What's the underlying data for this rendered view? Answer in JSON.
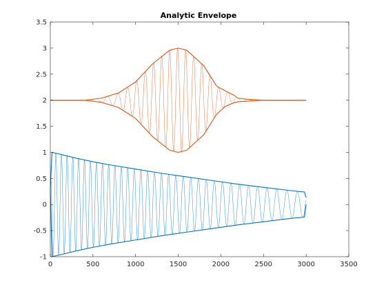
{
  "chart_data": {
    "type": "line",
    "title": "Analytic Envelope",
    "xlabel": "",
    "ylabel": "",
    "xlim": [
      0,
      3500
    ],
    "ylim": [
      -1,
      3.5
    ],
    "x_ticks": [
      "0",
      "500",
      "1000",
      "1500",
      "2000",
      "2500",
      "3000",
      "3500"
    ],
    "y_ticks": [
      "-1",
      "-0.5",
      "0",
      "0.5",
      "1",
      "1.5",
      "2",
      "2.5",
      "3",
      "3.5"
    ],
    "grid": false,
    "legend": "none",
    "series": [
      {
        "color": "#0072BD",
        "style": "oscillating signal between envelopes",
        "upper_envelope": {
          "x": [
            0,
            20,
            100,
            300,
            500,
            700,
            1000,
            1300,
            1600,
            1900,
            2200,
            2500,
            2800,
            2980,
            3000
          ],
          "y": [
            0.3,
            1.0,
            0.97,
            0.89,
            0.82,
            0.76,
            0.68,
            0.6,
            0.53,
            0.46,
            0.39,
            0.33,
            0.27,
            0.24,
            0.13
          ]
        },
        "lower_envelope": {
          "x": [
            0,
            20,
            100,
            300,
            500,
            700,
            1000,
            1300,
            1600,
            1900,
            2200,
            2500,
            2800,
            2980,
            3000
          ],
          "y": [
            0.3,
            -1.0,
            -0.97,
            -0.89,
            -0.82,
            -0.76,
            -0.68,
            -0.6,
            -0.53,
            -0.46,
            -0.39,
            -0.33,
            -0.27,
            -0.24,
            0.0
          ]
        }
      },
      {
        "color": "#D95319",
        "style": "oscillating signal between envelopes",
        "upper_envelope": {
          "x": [
            0,
            400,
            600,
            800,
            1000,
            1200,
            1400,
            1500,
            1600,
            1800,
            1950,
            2050,
            2150,
            2200,
            2300,
            2500,
            2700,
            3000
          ],
          "y": [
            2.0,
            2.0,
            2.04,
            2.14,
            2.35,
            2.7,
            2.96,
            3.0,
            2.96,
            2.66,
            2.27,
            2.18,
            2.1,
            2.04,
            2.02,
            2.0,
            2.0,
            2.0
          ]
        },
        "lower_envelope": {
          "x": [
            0,
            400,
            600,
            800,
            1000,
            1200,
            1400,
            1500,
            1600,
            1800,
            1950,
            2050,
            2150,
            2200,
            2300,
            2500,
            2700,
            3000
          ],
          "y": [
            2.0,
            2.0,
            1.96,
            1.86,
            1.65,
            1.3,
            1.04,
            1.0,
            1.04,
            1.34,
            1.73,
            1.88,
            1.95,
            1.97,
            1.98,
            2.0,
            2.0,
            2.0
          ]
        }
      }
    ]
  }
}
